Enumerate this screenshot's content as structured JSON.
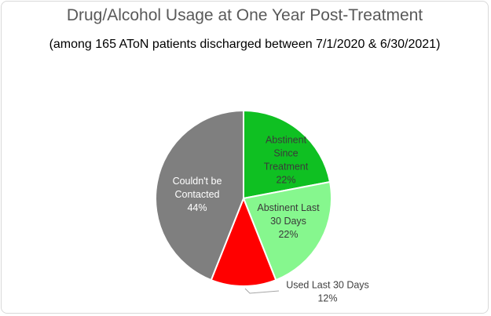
{
  "chart_data": {
    "type": "pie",
    "title": "Drug/Alcohol Usage at One Year Post-Treatment",
    "subtitle": "(among 165 AToN patients discharged between 7/1/2020 & 6/30/2021)",
    "slices": [
      {
        "label_lines": [
          "Abstinent",
          "Since",
          "Treatment"
        ],
        "pct_text": "22%",
        "value": 22,
        "color": "#0fc022",
        "text_color": "#3a3a3a"
      },
      {
        "label_lines": [
          "Abstinent Last",
          "30 Days"
        ],
        "pct_text": "22%",
        "value": 22,
        "color": "#86f78e",
        "text_color": "#3a3a3a"
      },
      {
        "label_lines": [
          "Used Last 30 Days"
        ],
        "pct_text": "12%",
        "value": 12,
        "color": "#ff0000",
        "text_color": "#404040"
      },
      {
        "label_lines": [
          "Couldn't be",
          "Contacted"
        ],
        "pct_text": "44%",
        "value": 44,
        "color": "#7f7f7f",
        "text_color": "#ffffff"
      }
    ]
  }
}
